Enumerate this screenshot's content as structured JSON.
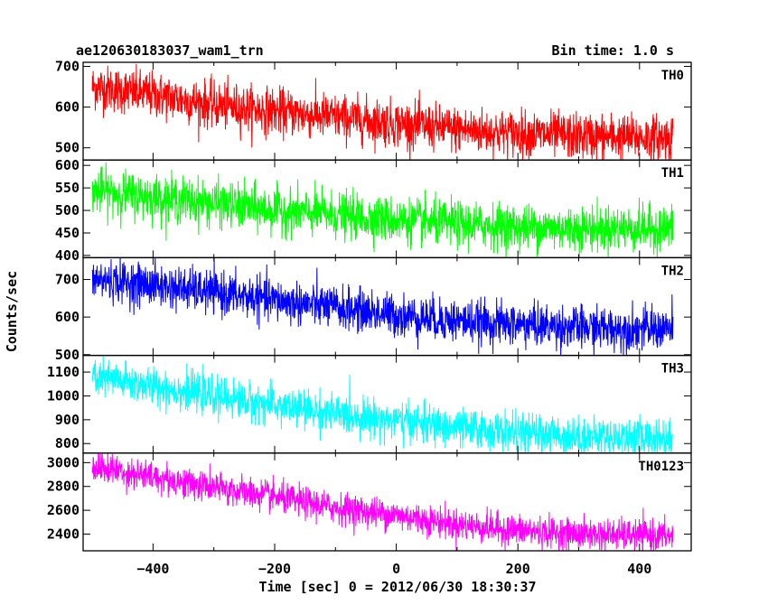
{
  "header": {
    "title": "ae120630183037_wam1_trn",
    "bin_time": "Bin time: 1.0 s"
  },
  "axes": {
    "xlabel": "Time [sec] 0 = 2012/06/30 18:30:37",
    "ylabel": "Counts/sec",
    "xlim": [
      -515,
      485
    ],
    "xticks": [
      "−400",
      "−200",
      "0",
      "200",
      "400"
    ]
  },
  "chart_data": {
    "type": "line",
    "x_range": [
      -500,
      455
    ],
    "bin_seconds": 1.0,
    "series": [
      {
        "name": "TH0",
        "color": "#ff0000",
        "ylim": [
          470,
          710
        ],
        "yticks": [
          "500",
          "600",
          "700"
        ],
        "trend_x": [
          -500,
          -400,
          -300,
          -200,
          -100,
          0,
          100,
          200,
          300,
          400,
          455
        ],
        "trend_y": [
          650,
          630,
          605,
          590,
          575,
          560,
          545,
          535,
          528,
          525,
          525
        ],
        "noise_sigma": 28
      },
      {
        "name": "TH1",
        "color": "#00ff00",
        "ylim": [
          395,
          612
        ],
        "yticks": [
          "400",
          "450",
          "500",
          "550",
          "600"
        ],
        "trend_x": [
          -500,
          -400,
          -300,
          -200,
          -100,
          0,
          100,
          200,
          300,
          400,
          455
        ],
        "trend_y": [
          545,
          530,
          515,
          500,
          490,
          478,
          470,
          463,
          460,
          460,
          460
        ],
        "noise_sigma": 25
      },
      {
        "name": "TH2",
        "color": "#0000ff",
        "ylim": [
          498,
          758
        ],
        "yticks": [
          "500",
          "600",
          "700"
        ],
        "trend_x": [
          -500,
          -400,
          -300,
          -200,
          -100,
          0,
          100,
          200,
          300,
          400,
          455
        ],
        "trend_y": [
          700,
          685,
          665,
          645,
          625,
          605,
          590,
          580,
          572,
          568,
          568
        ],
        "noise_sigma": 28
      },
      {
        "name": "TH3",
        "color": "#00ffff",
        "ylim": [
          760,
          1170
        ],
        "yticks": [
          "800",
          "900",
          "1000",
          "1100"
        ],
        "trend_x": [
          -500,
          -400,
          -300,
          -200,
          -100,
          0,
          100,
          200,
          300,
          400,
          455
        ],
        "trend_y": [
          1080,
          1040,
          1000,
          960,
          925,
          895,
          865,
          845,
          830,
          825,
          825
        ],
        "noise_sigma": 40
      },
      {
        "name": "TH0123",
        "color": "#ff00ff",
        "ylim": [
          2260,
          3080
        ],
        "yticks": [
          "2400",
          "2600",
          "2800",
          "3000"
        ],
        "trend_x": [
          -500,
          -400,
          -300,
          -200,
          -100,
          0,
          100,
          200,
          300,
          400,
          455
        ],
        "trend_y": [
          2970,
          2880,
          2790,
          2710,
          2620,
          2560,
          2480,
          2430,
          2400,
          2390,
          2385
        ],
        "noise_sigma": 65
      }
    ]
  }
}
